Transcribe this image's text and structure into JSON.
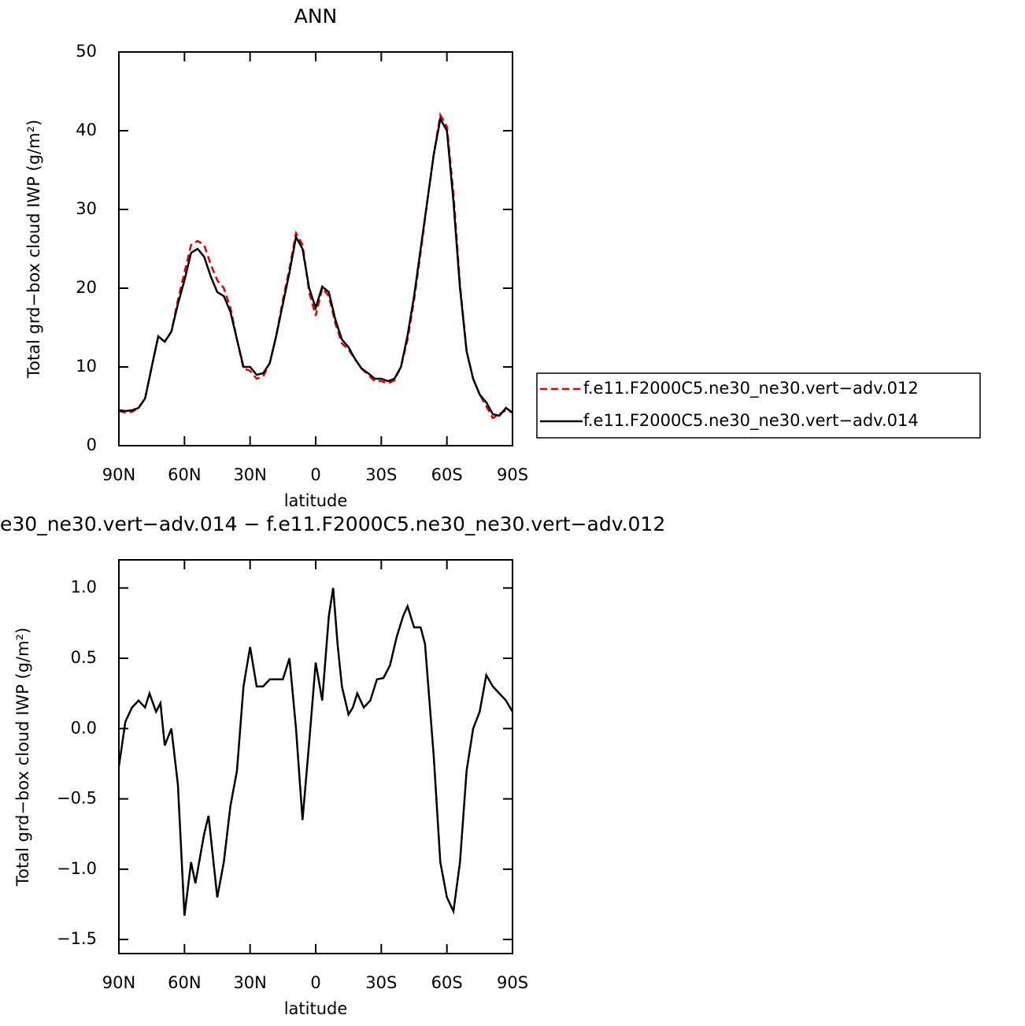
{
  "chart_data": [
    {
      "type": "line",
      "title": "ANN",
      "xlabel": "latitude",
      "ylabel": "Total grd−box cloud IWP (g/m²)",
      "x": [
        90,
        87,
        84,
        81,
        78,
        75,
        72,
        69,
        66,
        63,
        60,
        57,
        54,
        51,
        48,
        45,
        42,
        39,
        36,
        33,
        30,
        27,
        24,
        21,
        18,
        15,
        12,
        9,
        6,
        3,
        0,
        -3,
        -6,
        -9,
        -12,
        -15,
        -18,
        -21,
        -24,
        -27,
        -30,
        -33,
        -36,
        -39,
        -42,
        -45,
        -48,
        -51,
        -54,
        -57,
        -60,
        -63,
        -66,
        -69,
        -72,
        -75,
        -78,
        -81,
        -84,
        -87,
        -90
      ],
      "series": [
        {
          "name": "f.e11.F2000C5.ne30_ne30.vert−adv.012",
          "color": "#e00000",
          "dashed": true,
          "values": [
            4.4,
            4.2,
            4.3,
            4.8,
            6,
            10,
            13.8,
            13.2,
            14.5,
            18.5,
            22,
            25.5,
            26,
            25.5,
            23,
            21,
            20,
            17.5,
            13.5,
            9.8,
            9.5,
            8.5,
            8.8,
            10.5,
            14,
            18.5,
            22.5,
            27,
            25.5,
            19.5,
            16.5,
            20,
            19,
            15.5,
            13,
            12.2,
            11,
            9.8,
            9,
            8.2,
            8.2,
            7.9,
            8.3,
            10,
            13.5,
            18.5,
            24.5,
            31,
            37,
            42,
            40.5,
            32,
            20.5,
            12,
            8.5,
            6.5,
            5,
            3.5,
            4,
            4.5,
            4.2
          ]
        },
        {
          "name": "f.e11.F2000C5.ne30_ne30.vert−adv.014",
          "color": "#000000",
          "dashed": false,
          "values": [
            4.5,
            4.4,
            4.5,
            4.8,
            6,
            10,
            13.9,
            13.2,
            14.5,
            18,
            21,
            24.5,
            25,
            24,
            21.5,
            19.5,
            19,
            17,
            13.5,
            10,
            10,
            9,
            9.2,
            10.5,
            14,
            18,
            22,
            26.5,
            25,
            20,
            17.5,
            20.2,
            19.5,
            16,
            13.5,
            12.5,
            11,
            9.8,
            9.2,
            8.5,
            8.5,
            8.2,
            8.5,
            10,
            14,
            19,
            25,
            31,
            37,
            41.5,
            40,
            31,
            20,
            12,
            8.5,
            6.5,
            5.5,
            4,
            3.8,
            4.8,
            4.2
          ]
        }
      ],
      "xlim": [
        90,
        -90
      ],
      "xticks": [
        {
          "value": 90,
          "label": "90N"
        },
        {
          "value": 60,
          "label": "60N"
        },
        {
          "value": 30,
          "label": "30N"
        },
        0,
        {
          "value": -30,
          "label": "30S"
        },
        {
          "value": -60,
          "label": "60S"
        },
        {
          "value": -90,
          "label": "90S"
        }
      ],
      "ylim": [
        0,
        50
      ],
      "yticks": [
        0,
        10,
        20,
        30,
        40,
        50
      ],
      "legend": "right"
    },
    {
      "type": "line",
      "title": "e30_ne30.vert−adv.014 − f.e11.F2000C5.ne30_ne30.vert−adv.012",
      "xlabel": "latitude",
      "ylabel": "Total grd−box cloud IWP (g/m²)",
      "x": [
        90,
        87,
        84,
        81,
        78,
        76,
        73,
        71,
        69,
        66,
        63,
        60,
        57,
        55,
        51,
        49,
        45,
        42,
        39,
        36,
        33,
        30,
        27,
        24,
        21,
        18,
        15,
        12,
        9,
        6,
        3,
        0,
        -3,
        -6,
        -8,
        -10,
        -12,
        -15,
        -17,
        -19,
        -22,
        -25,
        -28,
        -31,
        -34,
        -37,
        -40,
        -42,
        -45,
        -48,
        -50,
        -54,
        -57,
        -60,
        -63,
        -66,
        -69,
        -72,
        -75,
        -78,
        -81,
        -84,
        -87,
        -90
      ],
      "series": [
        {
          "color": "#000000",
          "dashed": false,
          "values": [
            -0.27,
            0.05,
            0.15,
            0.2,
            0.15,
            0.25,
            0.12,
            0.18,
            -0.12,
            0.0,
            -0.4,
            -1.33,
            -0.95,
            -1.1,
            -0.75,
            -0.62,
            -1.2,
            -0.95,
            -0.55,
            -0.3,
            0.3,
            0.58,
            0.3,
            0.3,
            0.35,
            0.35,
            0.35,
            0.5,
            0.0,
            -0.65,
            -0.1,
            0.47,
            0.2,
            0.8,
            1.0,
            0.6,
            0.3,
            0.1,
            0.15,
            0.25,
            0.15,
            0.2,
            0.35,
            0.36,
            0.45,
            0.65,
            0.8,
            0.87,
            0.72,
            0.72,
            0.6,
            -0.2,
            -0.95,
            -1.2,
            -1.3,
            -0.95,
            -0.3,
            0.0,
            0.12,
            0.38,
            0.3,
            0.25,
            0.2,
            0.12
          ]
        }
      ],
      "xlim": [
        90,
        -90
      ],
      "xticks": [
        {
          "value": 90,
          "label": "90N"
        },
        {
          "value": 60,
          "label": "60N"
        },
        {
          "value": 30,
          "label": "30N"
        },
        0,
        {
          "value": -30,
          "label": "30S"
        },
        {
          "value": -60,
          "label": "60S"
        },
        {
          "value": -90,
          "label": "90S"
        }
      ],
      "ylim": [
        -1.6,
        1.2
      ],
      "yticks": [
        {
          "value": -1.5,
          "label": "−1.5"
        },
        {
          "value": -1,
          "label": "−1.0"
        },
        {
          "value": -0.5,
          "label": "−0.5"
        },
        {
          "value": 0,
          "label": "0.0"
        },
        0.5,
        {
          "value": 1,
          "label": "1.0"
        }
      ]
    }
  ]
}
